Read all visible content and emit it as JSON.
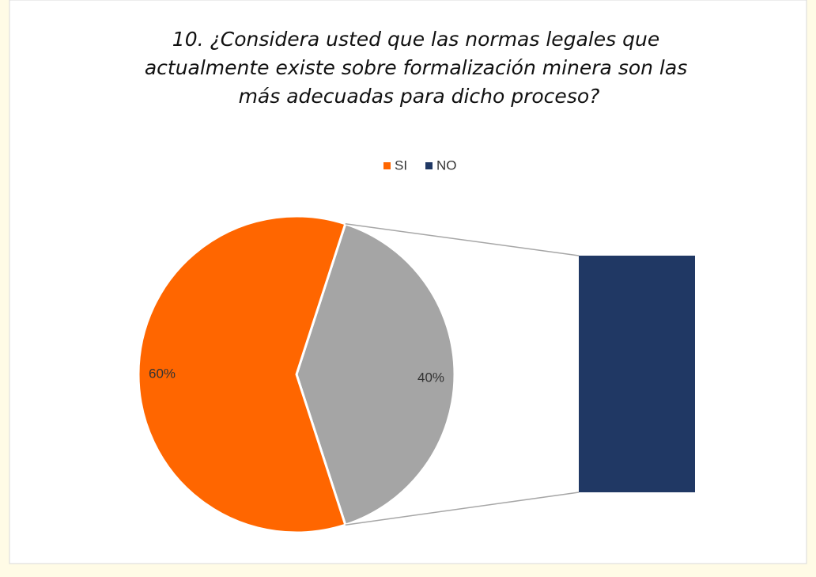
{
  "chart_data": {
    "type": "barofpie",
    "title": "10. ¿Considera usted que las normas legales que actualmente existe sobre formalización minera son las más adecuadas para dicho proceso?",
    "categories": [
      "SI",
      "NO"
    ],
    "values": [
      60,
      40
    ],
    "value_labels": [
      "60%",
      "40%"
    ],
    "colors": [
      "#ff6600",
      "#203864"
    ],
    "split_color": "#a5a5a5",
    "legend": "top"
  }
}
